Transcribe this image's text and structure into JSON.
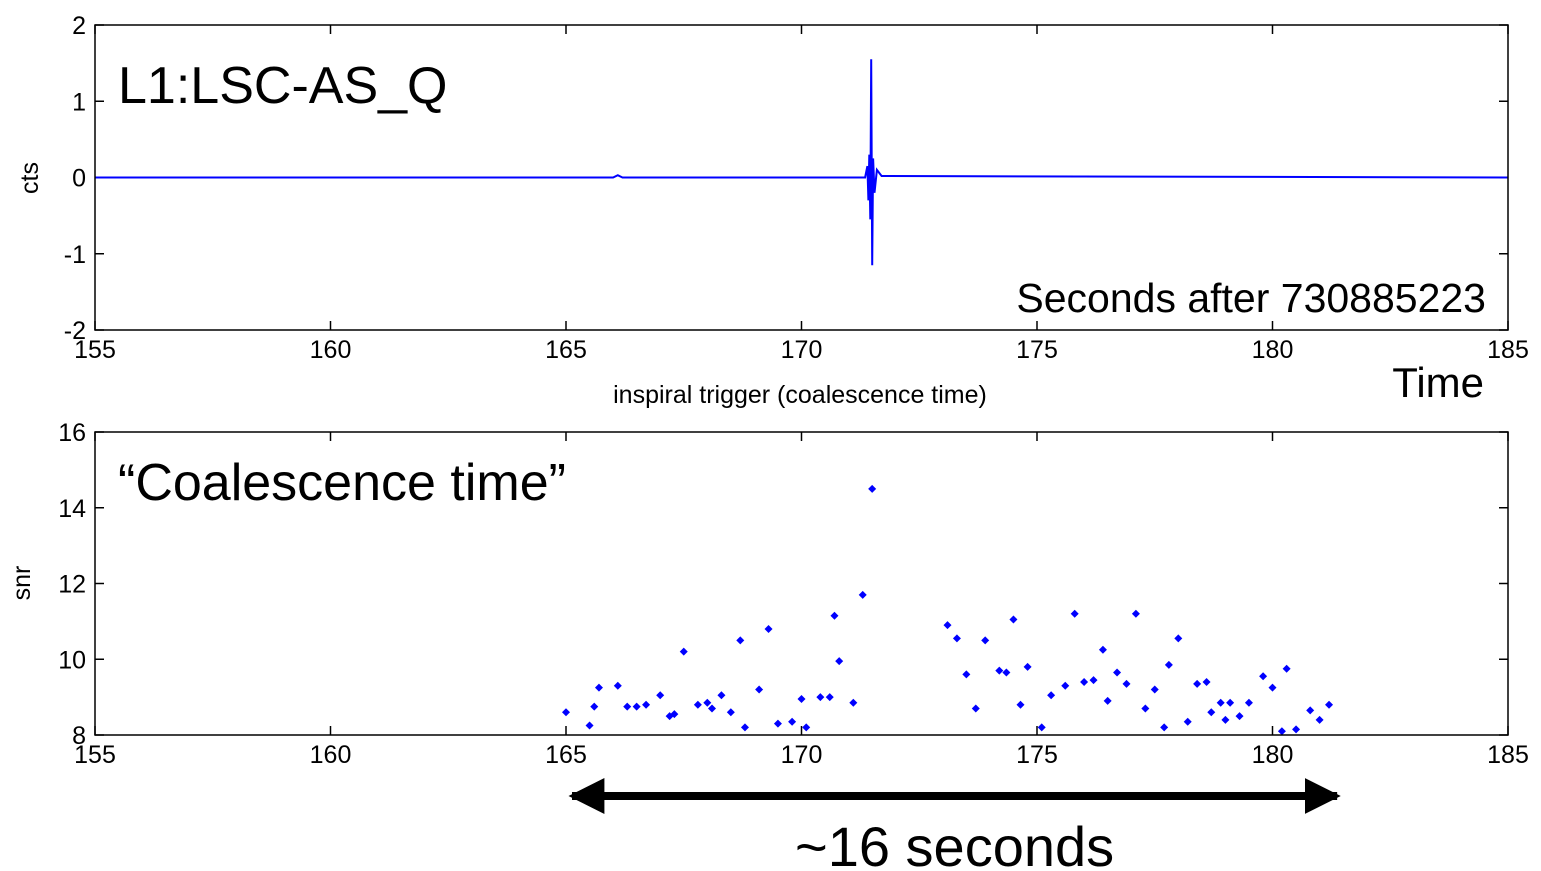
{
  "chart_data": [
    {
      "type": "line",
      "title": "",
      "annotation_channel": "L1:LSC-AS_Q",
      "annotation_offset": "Seconds after 730885223",
      "annotation_time": "Time",
      "xlabel": "inspiral trigger (coalescence time)",
      "ylabel": "cts",
      "xlim": [
        155,
        185
      ],
      "ylim": [
        -2,
        2
      ],
      "xticks": [
        "155",
        "160",
        "165",
        "170",
        "175",
        "180",
        "185"
      ],
      "yticks": [
        "-2",
        "-1",
        "0",
        "1",
        "2"
      ],
      "grid": false,
      "color": "#0000ff",
      "series": [
        {
          "x": [
            155,
            166.0,
            166.1,
            166.2,
            171.35,
            171.4,
            171.42,
            171.44,
            171.46,
            171.48,
            171.5,
            171.52,
            171.55,
            171.6,
            171.7,
            185
          ],
          "y": [
            0,
            0,
            0.03,
            0,
            0,
            0.15,
            -0.3,
            0.3,
            -0.55,
            1.55,
            -1.15,
            0.25,
            -0.2,
            0.1,
            0.02,
            0
          ]
        }
      ]
    },
    {
      "type": "scatter",
      "title": "",
      "annotation": "“Coalescence time”",
      "xlabel": "",
      "ylabel": "snr",
      "xlim": [
        155,
        185
      ],
      "ylim": [
        8,
        16
      ],
      "xticks": [
        "155",
        "160",
        "165",
        "170",
        "175",
        "180",
        "185"
      ],
      "yticks": [
        "8",
        "10",
        "12",
        "14",
        "16"
      ],
      "grid": false,
      "color": "#0000ff",
      "points": [
        [
          165.0,
          8.6
        ],
        [
          165.5,
          8.25
        ],
        [
          165.6,
          8.75
        ],
        [
          165.7,
          9.25
        ],
        [
          166.1,
          9.3
        ],
        [
          166.3,
          8.75
        ],
        [
          166.5,
          8.75
        ],
        [
          166.7,
          8.8
        ],
        [
          167.0,
          9.05
        ],
        [
          167.2,
          8.5
        ],
        [
          167.3,
          8.55
        ],
        [
          167.5,
          10.2
        ],
        [
          167.8,
          8.8
        ],
        [
          168.0,
          8.85
        ],
        [
          168.1,
          8.7
        ],
        [
          168.3,
          9.05
        ],
        [
          168.5,
          8.6
        ],
        [
          168.7,
          10.5
        ],
        [
          168.8,
          8.2
        ],
        [
          169.1,
          9.2
        ],
        [
          169.3,
          10.8
        ],
        [
          169.5,
          8.3
        ],
        [
          169.8,
          8.35
        ],
        [
          170.0,
          8.95
        ],
        [
          170.1,
          8.2
        ],
        [
          170.4,
          9.0
        ],
        [
          170.6,
          9.0
        ],
        [
          170.7,
          11.15
        ],
        [
          170.8,
          9.95
        ],
        [
          171.1,
          8.85
        ],
        [
          171.3,
          11.7
        ],
        [
          171.5,
          14.5
        ],
        [
          173.1,
          10.9
        ],
        [
          173.3,
          10.55
        ],
        [
          173.5,
          9.6
        ],
        [
          173.7,
          8.7
        ],
        [
          173.9,
          10.5
        ],
        [
          174.2,
          9.7
        ],
        [
          174.35,
          9.65
        ],
        [
          174.5,
          11.05
        ],
        [
          174.65,
          8.8
        ],
        [
          174.8,
          9.8
        ],
        [
          175.1,
          8.2
        ],
        [
          175.3,
          9.05
        ],
        [
          175.6,
          9.3
        ],
        [
          175.8,
          11.2
        ],
        [
          176.0,
          9.4
        ],
        [
          176.2,
          9.45
        ],
        [
          176.4,
          10.25
        ],
        [
          176.5,
          8.9
        ],
        [
          176.7,
          9.65
        ],
        [
          176.9,
          9.35
        ],
        [
          177.1,
          11.2
        ],
        [
          177.3,
          8.7
        ],
        [
          177.5,
          9.2
        ],
        [
          177.7,
          8.2
        ],
        [
          177.8,
          9.85
        ],
        [
          178.0,
          10.55
        ],
        [
          178.2,
          8.35
        ],
        [
          178.4,
          9.35
        ],
        [
          178.6,
          9.4
        ],
        [
          178.7,
          8.6
        ],
        [
          178.9,
          8.85
        ],
        [
          179.0,
          8.4
        ],
        [
          179.1,
          8.85
        ],
        [
          179.3,
          8.5
        ],
        [
          179.5,
          8.85
        ],
        [
          179.8,
          9.55
        ],
        [
          180.0,
          9.25
        ],
        [
          180.2,
          8.1
        ],
        [
          180.3,
          9.75
        ],
        [
          180.5,
          8.15
        ],
        [
          180.8,
          8.65
        ],
        [
          181.0,
          8.4
        ],
        [
          181.2,
          8.8
        ]
      ],
      "span_annotation": {
        "from": 165,
        "to": 181.5,
        "label": "~16 seconds"
      }
    }
  ]
}
